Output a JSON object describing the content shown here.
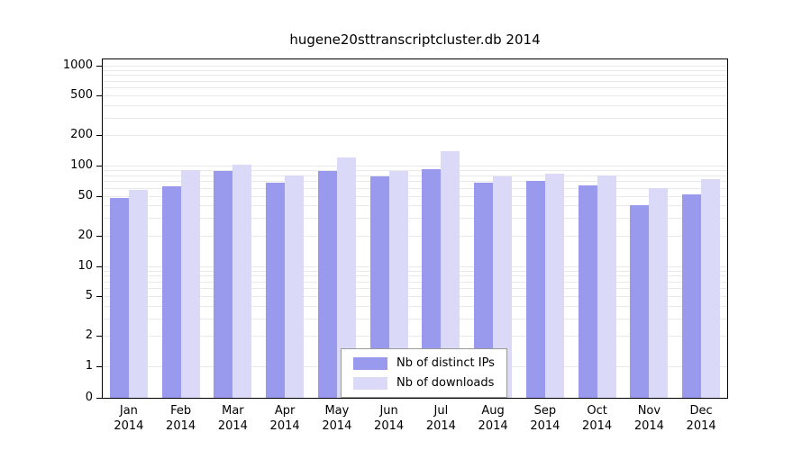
{
  "chart_data": {
    "type": "bar",
    "title": "hugene20sttranscriptcluster.db 2014",
    "categories": [
      "Jan",
      "Feb",
      "Mar",
      "Apr",
      "May",
      "Jun",
      "Jul",
      "Aug",
      "Sep",
      "Oct",
      "Nov",
      "Dec"
    ],
    "year_label": "2014",
    "series": [
      {
        "name": "Nb of distinct IPs",
        "color": "#9999ee",
        "values": [
          48,
          62,
          88,
          67,
          88,
          78,
          92,
          67,
          70,
          63,
          40,
          52
        ]
      },
      {
        "name": "Nb of downloads",
        "color": "#dadaf8",
        "values": [
          57,
          90,
          103,
          80,
          120,
          88,
          140,
          78,
          83,
          80,
          60,
          73
        ]
      }
    ],
    "y_axis": {
      "scale": "log",
      "ticks": [
        0,
        1,
        2,
        5,
        10,
        20,
        50,
        100,
        200,
        500,
        1000
      ],
      "range": [
        0,
        1000
      ]
    },
    "grid": "horizontal-log-minor-lines",
    "grid_color": "#e9e9e9",
    "axis_color": "#000000",
    "legend_position": "bottom-center-inside"
  }
}
